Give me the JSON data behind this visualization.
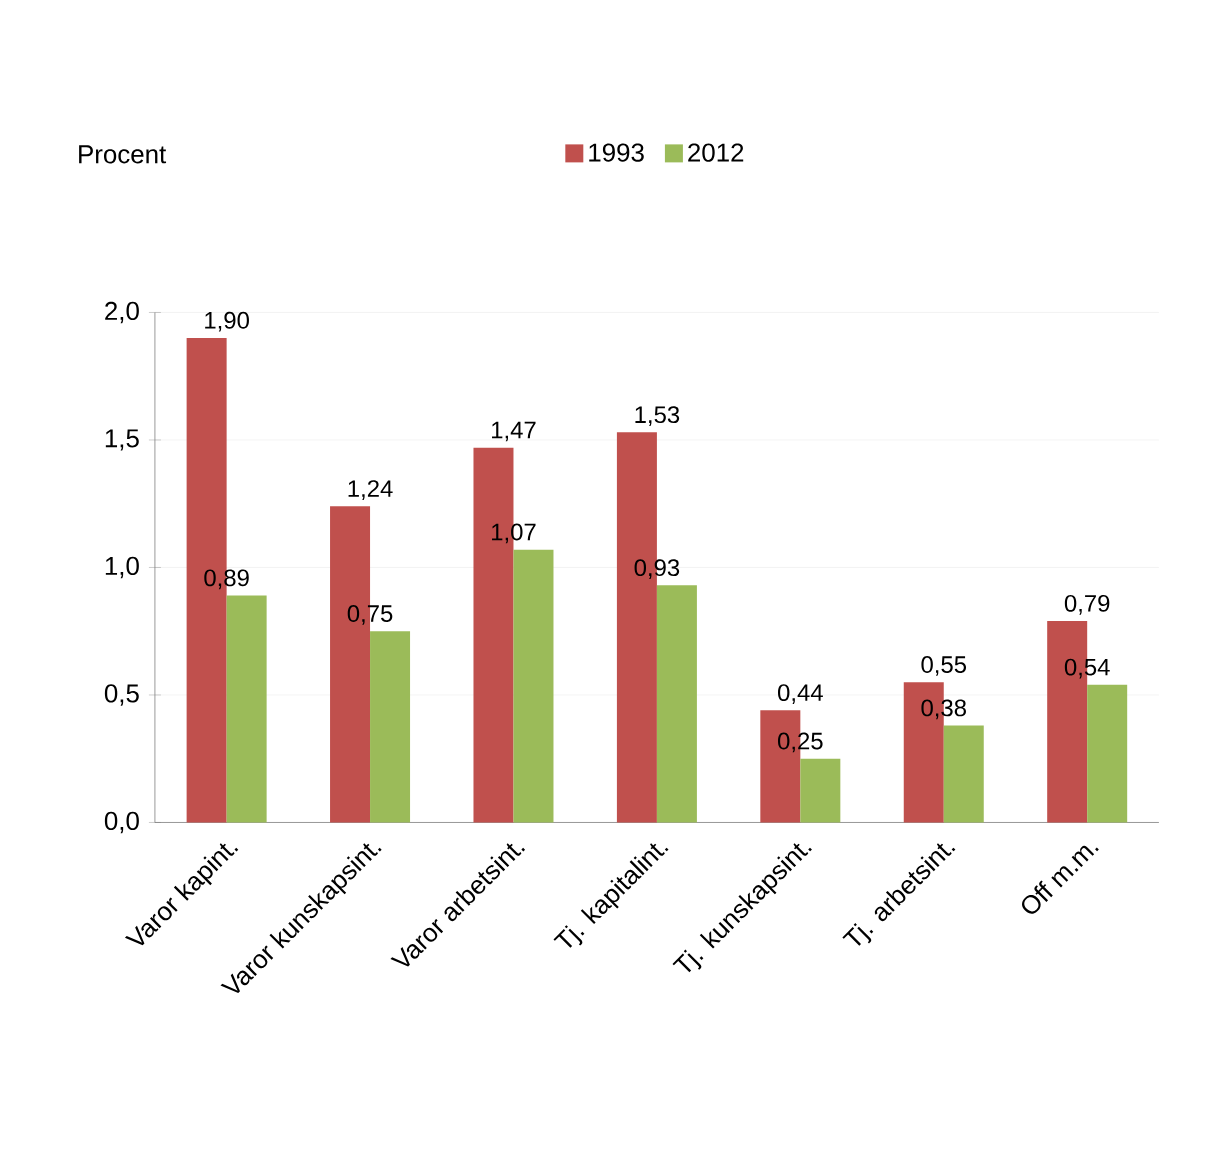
{
  "chart_data": {
    "type": "bar",
    "annotations": [
      "Procent"
    ],
    "categories": [
      "Varor kapint.",
      "Varor kunskapsint.",
      "Varor arbetsint.",
      "Tj. kapitalint.",
      "Tj. kunskapsint.",
      "Tj. arbetsint.",
      "Off m.m."
    ],
    "series": [
      {
        "name": "1993",
        "color": "#c0504d",
        "values": [
          1.9,
          1.24,
          1.47,
          1.53,
          0.44,
          0.55,
          0.79
        ],
        "value_labels": [
          "1,90",
          "1,24",
          "1,47",
          "1,53",
          "0,44",
          "0,55",
          "0,79"
        ]
      },
      {
        "name": "2012",
        "color": "#9bbb59",
        "values": [
          0.89,
          0.75,
          1.07,
          0.93,
          0.25,
          0.38,
          0.54
        ],
        "value_labels": [
          "0,89",
          "0,75",
          "1,07",
          "0,93",
          "0,25",
          "0,38",
          "0,54"
        ]
      }
    ],
    "ylim": [
      0,
      2
    ],
    "yticks": [
      {
        "value": 0,
        "label": "0,0"
      },
      {
        "value": 0.5,
        "label": "0,5"
      },
      {
        "value": 1,
        "label": "1,0"
      },
      {
        "value": 1.5,
        "label": "1,5"
      },
      {
        "value": 2,
        "label": "2,0"
      }
    ],
    "grid": "y",
    "legend": "top"
  }
}
